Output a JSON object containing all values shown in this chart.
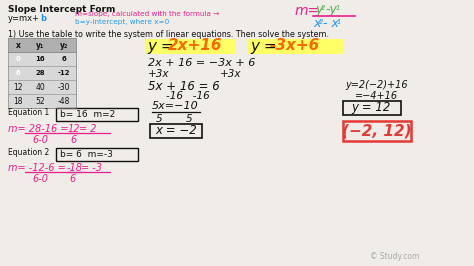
{
  "bg_color": "#f0ede8",
  "title": "Slope Intercept Form",
  "watermark": "© Study.com",
  "table_headers": [
    "x",
    "y₁",
    "y₂"
  ],
  "table_data": [
    [
      "0",
      "16",
      "6"
    ],
    [
      "6",
      "28",
      "-12"
    ],
    [
      "12",
      "40",
      "-30"
    ],
    [
      "18",
      "52",
      "-48"
    ]
  ],
  "row0_colors": [
    "#9575cd",
    "#4db6ac",
    "#80cbc4"
  ],
  "row1_colors": [
    "#ba68c8",
    "#66bb6a",
    "#ef5350"
  ],
  "eq1_color": "#ff6600",
  "eq2_color": "#ff6600",
  "highlight_color": "#ffff66",
  "pink_color": "#e91e8c",
  "green_color": "#4caf50",
  "blue_color": "#2196F3",
  "red_color": "#e53935",
  "solve_color": "#222222",
  "box_color": "#222222"
}
